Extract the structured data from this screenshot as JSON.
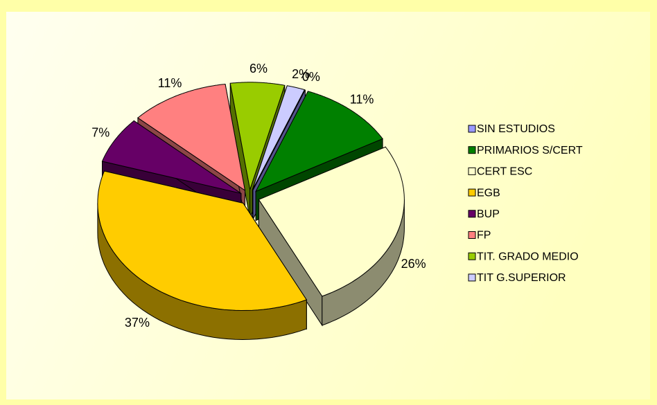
{
  "chart_data": {
    "type": "pie",
    "categories": [
      "SIN ESTUDIOS",
      "PRIMARIOS S/CERT",
      "CERT ESC",
      "EGB",
      "BUP",
      "FP",
      "TIT. GRADO MEDIO",
      "TIT G.SUPERIOR"
    ],
    "values": [
      0,
      11,
      26,
      37,
      7,
      11,
      6,
      2
    ],
    "value_labels": [
      "0%",
      "11%",
      "26%",
      "37%",
      "7%",
      "11%",
      "6%",
      "2%"
    ],
    "colors": [
      "#9999FF",
      "#008000",
      "#FFFFCC",
      "#FFCC00",
      "#660066",
      "#FF8080",
      "#99CC00",
      "#CCCCFF"
    ],
    "legend": "right"
  }
}
